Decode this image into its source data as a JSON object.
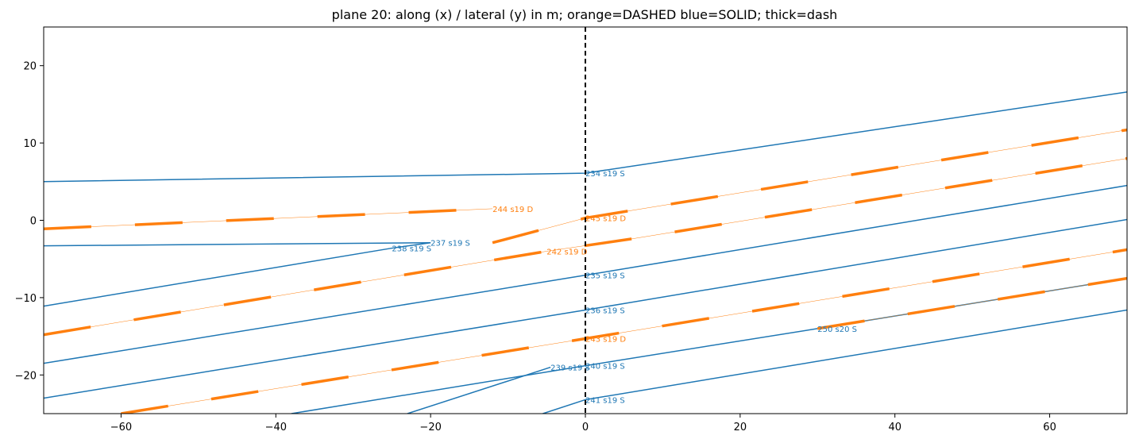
{
  "chart_data": {
    "type": "line",
    "title": "plane 20: along (x) / lateral (y) in m; orange=DASHED blue=SOLID; thick=dash",
    "xlim": [
      -70,
      70
    ],
    "ylim": [
      -25,
      25
    ],
    "x_ticks": [
      -60,
      -40,
      -20,
      0,
      20,
      40,
      60
    ],
    "x_tick_labels": [
      "−60",
      "−40",
      "−20",
      "0",
      "20",
      "40",
      "60"
    ],
    "y_ticks": [
      -20,
      -10,
      0,
      10,
      20
    ],
    "y_tick_labels": [
      "−20",
      "−10",
      "0",
      "10",
      "20"
    ],
    "grid": false,
    "reference_line": {
      "x": 0,
      "style": "dashed",
      "color": "#000000"
    },
    "colors": {
      "solid": "#1f77b4",
      "dashed": "#ff7f0e"
    },
    "series": [
      {
        "label": "234 s19 S",
        "kind": "solid",
        "points": [
          [
            -70,
            5.0
          ],
          [
            0,
            6.1
          ],
          [
            70,
            16.6
          ]
        ],
        "label_at": [
          0,
          6.1
        ]
      },
      {
        "label": "237 s19 S",
        "kind": "solid",
        "points": [
          [
            -70,
            -3.3
          ],
          [
            -20,
            -2.9
          ]
        ],
        "label_at": [
          -20,
          -2.9
        ]
      },
      {
        "label": "238 s19 S",
        "kind": "solid",
        "points": [
          [
            -70,
            -11.1
          ],
          [
            -25,
            -3.6
          ],
          [
            -20,
            -2.9
          ]
        ],
        "label_at": [
          -25,
          -3.6
        ]
      },
      {
        "label": "235 s19 S",
        "kind": "solid",
        "points": [
          [
            -70,
            -18.5
          ],
          [
            0,
            -7.1
          ],
          [
            70,
            4.5
          ]
        ],
        "label_at": [
          0,
          -7.1
        ]
      },
      {
        "label": "236 s19 S",
        "kind": "solid",
        "points": [
          [
            -70,
            -23.0
          ],
          [
            0,
            -11.6
          ],
          [
            70,
            0.1
          ]
        ],
        "label_at": [
          0,
          -11.6
        ]
      },
      {
        "label": "240 s19 S",
        "kind": "solid",
        "points": [
          [
            -38,
            -25.0
          ],
          [
            0,
            -18.8
          ],
          [
            30,
            -14.0
          ]
        ],
        "label_at": [
          0,
          -18.8
        ]
      },
      {
        "label": "250 s20 S",
        "kind": "solid",
        "points": [
          [
            30,
            -14.0
          ],
          [
            70,
            -7.5
          ]
        ],
        "label_at": [
          30,
          -14.0
        ]
      },
      {
        "label": "239 s19 S",
        "kind": "solid",
        "points": [
          [
            -23,
            -25.0
          ],
          [
            -4.5,
            -19.0
          ]
        ],
        "label_at": [
          -4.5,
          -19.0
        ]
      },
      {
        "label": "241 s19 S",
        "kind": "solid",
        "points": [
          [
            -5.5,
            -25.0
          ],
          [
            0,
            -23.2
          ],
          [
            70,
            -11.6
          ]
        ],
        "label_at": [
          0,
          -23.2
        ]
      },
      {
        "label": "244 s19 D",
        "kind": "dashed",
        "points": [
          [
            -70,
            -1.1
          ],
          [
            -12,
            1.5
          ]
        ],
        "label_at": [
          -12,
          1.5
        ]
      },
      {
        "label": "245 s19 D",
        "kind": "dashed",
        "points": [
          [
            -12,
            -2.9
          ],
          [
            0,
            0.3
          ],
          [
            70,
            11.7
          ]
        ],
        "label_at": [
          0,
          0.3
        ]
      },
      {
        "label": "242 s19 D",
        "kind": "dashed",
        "points": [
          [
            -70,
            -14.8
          ],
          [
            -5,
            -4.0
          ],
          [
            6,
            -2.4
          ],
          [
            70,
            8.0
          ]
        ],
        "label_at": [
          -5,
          -4.0
        ]
      },
      {
        "label": "243 s19 D",
        "kind": "dashed",
        "points": [
          [
            -60,
            -25.0
          ],
          [
            0,
            -15.3
          ],
          [
            70,
            -3.8
          ]
        ],
        "label_at": [
          0,
          -15.3
        ]
      },
      {
        "label": "",
        "kind": "dashed",
        "points": [
          [
            30,
            -14.0
          ],
          [
            70,
            -7.5
          ]
        ],
        "label_at": null
      }
    ]
  }
}
